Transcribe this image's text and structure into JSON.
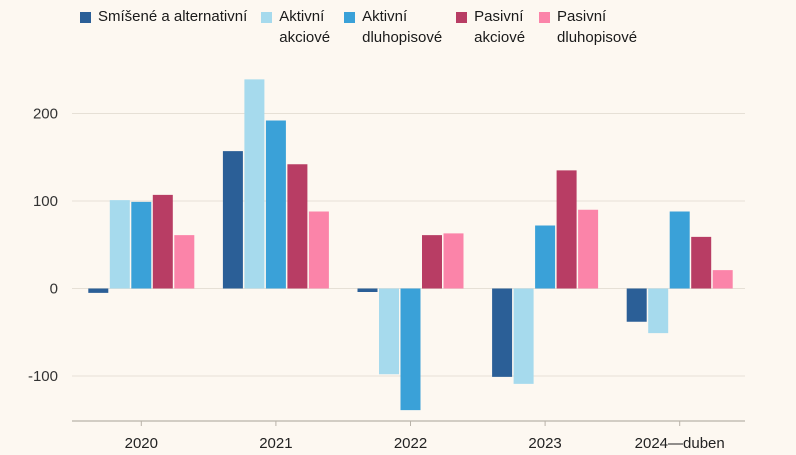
{
  "chart_data": {
    "type": "bar",
    "title": "",
    "xlabel": "",
    "ylabel": "",
    "categories": [
      "2020",
      "2021",
      "2022",
      "2023",
      "2024—duben"
    ],
    "yticks": [
      -100,
      0,
      100,
      200
    ],
    "ytick_labels": [
      "-100",
      "0",
      "100",
      "200"
    ],
    "ylim": [
      -150,
      250
    ],
    "grid": true,
    "legend_position": "top",
    "series": [
      {
        "name": "Smíšené a alternativní",
        "color": "#2b5f97",
        "values": [
          -5,
          157,
          -4,
          -101,
          -38
        ]
      },
      {
        "name": "Aktivní\nakciové",
        "color": "#a6daed",
        "values": [
          101,
          239,
          -98,
          -109,
          -51
        ]
      },
      {
        "name": "Aktivní\ndluhopisové",
        "color": "#3aa1d8",
        "values": [
          99,
          192,
          -139,
          72,
          88
        ]
      },
      {
        "name": "Pasivní\nakciové",
        "color": "#b83d64",
        "values": [
          107,
          142,
          61,
          135,
          59
        ]
      },
      {
        "name": "Pasivní\ndluhopisové",
        "color": "#fb84a9",
        "values": [
          61,
          88,
          63,
          90,
          21
        ]
      }
    ]
  }
}
